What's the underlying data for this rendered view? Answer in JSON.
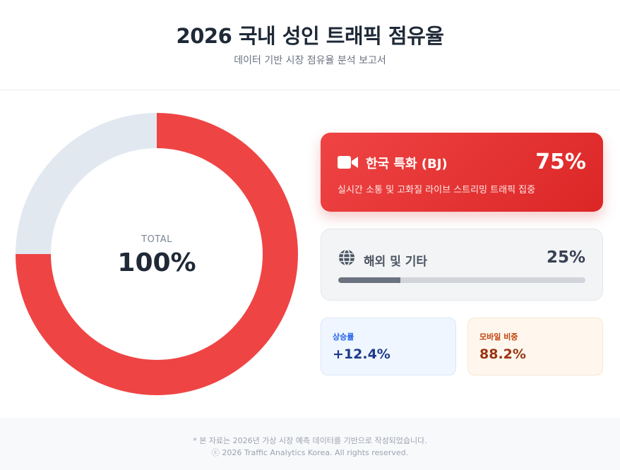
{
  "header": {
    "title": "2026 국내 성인 트래픽 점유율",
    "subtitle": "데이터 기반 시장 점유율 분석 보고서"
  },
  "chart_data": {
    "type": "pie",
    "donut": true,
    "center_label": "TOTAL",
    "center_value": "100%",
    "slices": [
      {
        "label": "한국 특화 (BJ)",
        "value": 75,
        "color": "#ef4444"
      },
      {
        "label": "해외 및 기타",
        "value": 25,
        "color": "#e2e8f0"
      }
    ]
  },
  "cards": {
    "primary": {
      "icon": "video-camera-icon",
      "label": "한국 특화 (BJ)",
      "percent": "75%",
      "description": "실시간 소통 및 고화질 라이브 스트리밍 트래픽 집중"
    },
    "secondary": {
      "icon": "globe-icon",
      "label": "해외 및 기타",
      "percent": "25%",
      "progress": 0.25
    }
  },
  "stats": {
    "growth": {
      "label": "상승률",
      "value": "+12.4%"
    },
    "mobile": {
      "label": "모바일 비중",
      "value": "88.2%"
    }
  },
  "footer": {
    "note": "* 본 자료는 2026년 가상 시장 예측 데이터를 기반으로 작성되었습니다.",
    "copyright": "ⓒ 2026 Traffic Analytics Korea. All rights reserved."
  },
  "colors": {
    "accent_red": "#ef4444",
    "neutral_slice": "#e2e8f0",
    "progress_fill": "#6b7280"
  }
}
